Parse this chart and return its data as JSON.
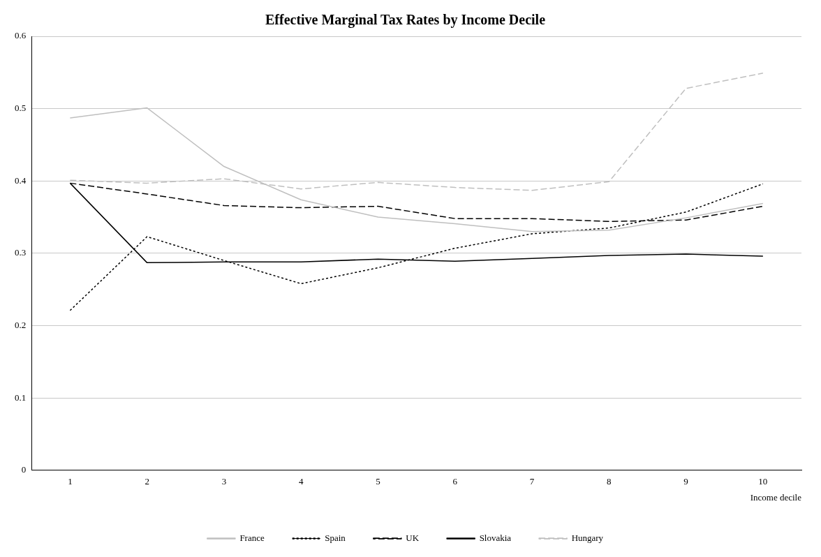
{
  "chart_data": {
    "type": "line",
    "title": "Effective Marginal Tax Rates by Income Decile",
    "xlabel": "Income decile",
    "categories": [
      "1",
      "2",
      "3",
      "4",
      "5",
      "6",
      "7",
      "8",
      "9",
      "10"
    ],
    "ylim": [
      0,
      0.6
    ],
    "yticks": [
      0,
      0.1,
      0.2,
      0.3,
      0.4,
      0.5,
      0.6
    ],
    "grid": "y",
    "legend": "bottom",
    "marker": "none",
    "series": [
      {
        "name": "France",
        "color": "#bfbfbf",
        "line_style": "solid",
        "values": [
          0.487,
          0.501,
          0.42,
          0.374,
          0.35,
          0.341,
          0.33,
          0.332,
          0.349,
          0.369
        ]
      },
      {
        "name": "Spain",
        "color": "#000000",
        "line_style": "dotted",
        "values": [
          0.221,
          0.323,
          0.29,
          0.258,
          0.28,
          0.307,
          0.327,
          0.335,
          0.357,
          0.396
        ]
      },
      {
        "name": "UK",
        "color": "#000000",
        "line_style": "dashed",
        "values": [
          0.397,
          0.382,
          0.366,
          0.363,
          0.365,
          0.348,
          0.348,
          0.344,
          0.346,
          0.365
        ]
      },
      {
        "name": "Slovakia",
        "color": "#000000",
        "line_style": "solid",
        "values": [
          0.397,
          0.287,
          0.288,
          0.288,
          0.292,
          0.289,
          0.293,
          0.297,
          0.299,
          0.296
        ]
      },
      {
        "name": "Hungary",
        "color": "#bfbfbf",
        "line_style": "dashed",
        "values": [
          0.401,
          0.397,
          0.403,
          0.389,
          0.398,
          0.391,
          0.387,
          0.399,
          0.528,
          0.549
        ]
      }
    ]
  }
}
